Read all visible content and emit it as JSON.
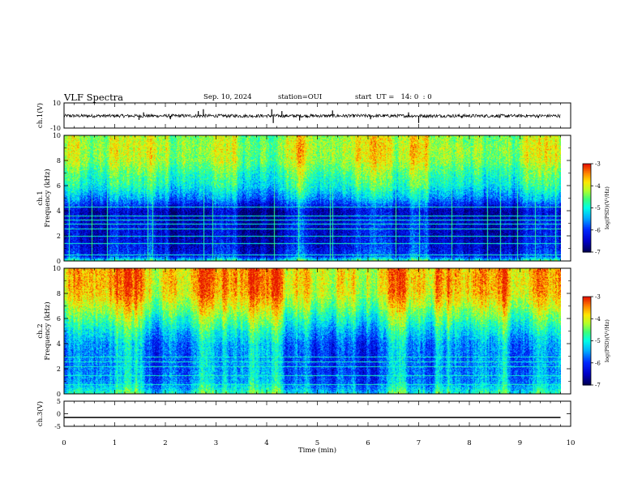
{
  "header": {
    "title": "VLF Spectra",
    "date": "Sep. 10, 2024",
    "station": "station=OUI",
    "start": "start  UT =   14: 0  : 0"
  },
  "chart_data": [
    {
      "id": "ch1-waveform",
      "type": "line",
      "ylabel": "ch.1(V)",
      "ylim": [
        -10,
        10
      ],
      "yticks": [
        "10",
        "-10"
      ],
      "xlim": [
        0,
        10
      ],
      "description_level": -0.3,
      "series": [
        {
          "x": [
            0,
            9.8
          ],
          "y": [
            -0.3,
            -0.3
          ]
        }
      ],
      "spikes": [
        {
          "x": 1.48,
          "y": -3.5
        },
        {
          "x": 1.57,
          "y": 2.5
        },
        {
          "x": 2.1,
          "y": -3
        },
        {
          "x": 2.65,
          "y": 3.5
        },
        {
          "x": 2.75,
          "y": 5
        },
        {
          "x": 4.1,
          "y": 5
        },
        {
          "x": 4.13,
          "y": -6
        },
        {
          "x": 4.3,
          "y": 3.5
        },
        {
          "x": 4.65,
          "y": -4
        },
        {
          "x": 5.3,
          "y": 4
        },
        {
          "x": 6.05,
          "y": -3
        },
        {
          "x": 6.8,
          "y": 2.5
        },
        {
          "x": 7.0,
          "y": -6
        },
        {
          "x": 7.85,
          "y": -2
        },
        {
          "x": 8.6,
          "y": -2
        }
      ]
    },
    {
      "id": "ch1-spectrogram",
      "type": "heatmap",
      "ylabel": "ch.1",
      "ylabel2": "Frequency  (kHz)",
      "ylim": [
        0,
        10
      ],
      "yticks": [
        "0",
        "2",
        "4",
        "6",
        "8",
        "10"
      ],
      "xlim": [
        0,
        10
      ],
      "data_xmax": 9.8,
      "colorbar": {
        "label": "log(PSD)(V²/Hz)",
        "ticks": [
          "-3",
          "-4",
          "-5",
          "-6",
          "-7"
        ],
        "range": [
          -7,
          -3
        ]
      },
      "profile": {
        "freq_khz": [
          0,
          0.4,
          1,
          2,
          3,
          4,
          4.5,
          5,
          6,
          7,
          8,
          9,
          10
        ],
        "log_psd": [
          -4.6,
          -6.0,
          -6.2,
          -6.4,
          -6.3,
          -6.5,
          -6.0,
          -5.5,
          -4.9,
          -4.6,
          -4.2,
          -4.1,
          -4.2
        ]
      },
      "horizontal_lines_khz": [
        0.5,
        1.4,
        2.0,
        2.6,
        3.0,
        3.3,
        3.6,
        4.3
      ],
      "vertical_streaks_min": [
        0.1,
        0.55,
        0.85,
        1.65,
        1.75,
        2.75,
        2.92,
        4.15,
        4.62,
        5.25,
        5.3,
        6.55,
        7.0,
        7.65,
        8.35,
        8.6,
        8.95,
        9.3,
        9.7
      ]
    },
    {
      "id": "ch2-spectrogram",
      "type": "heatmap",
      "ylabel": "ch.2",
      "ylabel2": "Frequency  (kHz)",
      "ylim": [
        0,
        10
      ],
      "yticks": [
        "0",
        "2",
        "4",
        "6",
        "8",
        "10"
      ],
      "xlim": [
        0,
        10
      ],
      "data_xmax": 9.8,
      "colorbar": {
        "label": "log(PSD)(V²/Hz)",
        "ticks": [
          "-3",
          "-4",
          "-5",
          "-6",
          "-7"
        ],
        "range": [
          -7,
          -3
        ]
      },
      "profile": {
        "freq_khz": [
          0,
          0.5,
          1,
          2,
          3,
          4,
          5,
          6,
          7,
          8,
          9,
          10
        ],
        "log_psd": [
          -4.8,
          -5.2,
          -5.5,
          -5.6,
          -5.6,
          -5.5,
          -5.1,
          -4.6,
          -4.1,
          -3.7,
          -3.6,
          -3.6
        ]
      },
      "horizontal_lines_khz": [
        0.8,
        1.5,
        2.2,
        2.6,
        3.0
      ],
      "vertical_streaks_min": []
    },
    {
      "id": "ch3-waveform",
      "type": "line",
      "ylabel": "ch.3(V)",
      "ylim": [
        -5,
        5
      ],
      "yticks": [
        "5",
        "0",
        "-5"
      ],
      "xlim": [
        0,
        10
      ],
      "xlabel": "Time  (min)",
      "xticks": [
        "0",
        "1",
        "2",
        "3",
        "4",
        "5",
        "6",
        "7",
        "8",
        "9",
        "10"
      ],
      "series": [
        {
          "x": [
            0,
            9.8
          ],
          "y": [
            -1.5,
            -1.5
          ]
        }
      ]
    }
  ]
}
